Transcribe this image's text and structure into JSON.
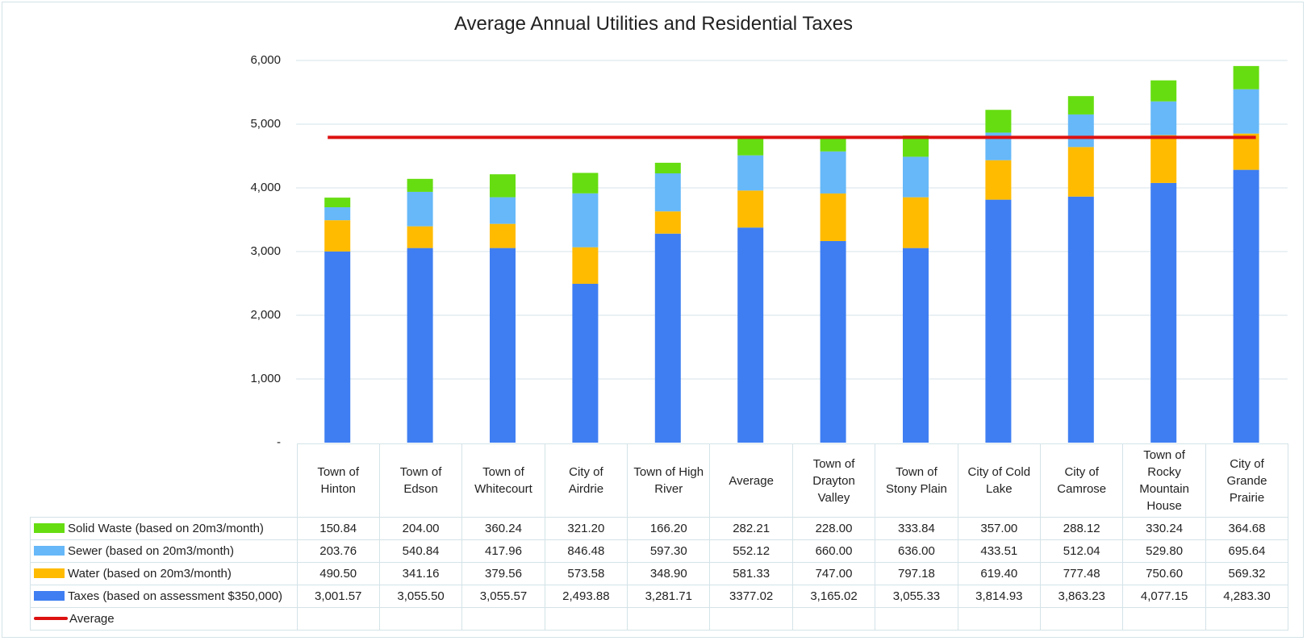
{
  "chart_data": {
    "type": "bar",
    "stacked": true,
    "title": "Average Annual Utilities and Residential Taxes",
    "ylim": [
      0,
      6000
    ],
    "yticks": [
      "-",
      "1,000",
      "2,000",
      "3,000",
      "4,000",
      "5,000",
      "6,000"
    ],
    "grid": true,
    "legend": "table-left",
    "categories": [
      [
        "Town of",
        "Hinton"
      ],
      [
        "Town of",
        "Edson"
      ],
      [
        "Town of",
        "Whitecourt"
      ],
      [
        "City of",
        "Airdrie"
      ],
      [
        "Town of High",
        "River"
      ],
      [
        "Average"
      ],
      [
        "Town of",
        "Drayton",
        "Valley"
      ],
      [
        "Town of",
        "Stony Plain"
      ],
      [
        "City of Cold",
        "Lake"
      ],
      [
        "City of",
        "Camrose"
      ],
      [
        "Town of",
        "Rocky",
        "Mountain",
        "House"
      ],
      [
        "City of",
        "Grande",
        "Prairie"
      ]
    ],
    "series": [
      {
        "name": "Solid Waste (based on 20m3/month)",
        "color": "#66dd11",
        "values": [
          150.84,
          204.0,
          360.24,
          321.2,
          166.2,
          282.21,
          228.0,
          333.84,
          357.0,
          288.12,
          330.24,
          364.68
        ],
        "labels": [
          "150.84",
          "204.00",
          "360.24",
          "321.20",
          "166.20",
          "282.21",
          "228.00",
          "333.84",
          "357.00",
          "288.12",
          "330.24",
          "364.68"
        ]
      },
      {
        "name": "Sewer (based on 20m3/month)",
        "color": "#66b8f8",
        "values": [
          203.76,
          540.84,
          417.96,
          846.48,
          597.3,
          552.12,
          660.0,
          636.0,
          433.51,
          512.04,
          529.8,
          695.64
        ],
        "labels": [
          "203.76",
          "540.84",
          "417.96",
          "846.48",
          "597.30",
          "552.12",
          "660.00",
          "636.00",
          "433.51",
          "512.04",
          "529.80",
          "695.64"
        ]
      },
      {
        "name": "Water (based on 20m3/month)",
        "color": "#ffbb00",
        "values": [
          490.5,
          341.16,
          379.56,
          573.58,
          348.9,
          581.33,
          747.0,
          797.18,
          619.4,
          777.48,
          750.6,
          569.32
        ],
        "labels": [
          "490.50",
          "341.16",
          "379.56",
          "573.58",
          "348.90",
          "581.33",
          "747.00",
          "797.18",
          "619.40",
          "777.48",
          "750.60",
          "569.32"
        ]
      },
      {
        "name": "Taxes (based on assessment $350,000)",
        "color": "#3f7ef2",
        "values": [
          3001.57,
          3055.5,
          3055.57,
          2493.88,
          3281.71,
          3377.02,
          3165.02,
          3055.33,
          3814.93,
          3863.23,
          4077.15,
          4283.3
        ],
        "labels": [
          "3,001.57",
          "3,055.50",
          "3,055.57",
          "2,493.88",
          "3,281.71",
          "3377.02",
          "3,165.02",
          "3,055.33",
          "3,814.93",
          "3,863.23",
          "4,077.15",
          "4,283.30"
        ]
      }
    ],
    "average_line": {
      "name": "Average",
      "color": "#dd1111",
      "value": 4792.68
    }
  }
}
